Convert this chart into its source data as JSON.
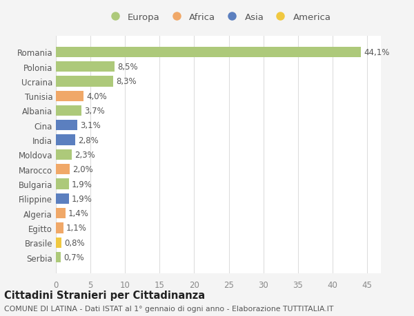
{
  "countries": [
    "Romania",
    "Polonia",
    "Ucraina",
    "Tunisia",
    "Albania",
    "Cina",
    "India",
    "Moldova",
    "Marocco",
    "Bulgaria",
    "Filippine",
    "Algeria",
    "Egitto",
    "Brasile",
    "Serbia"
  ],
  "values": [
    44.1,
    8.5,
    8.3,
    4.0,
    3.7,
    3.1,
    2.8,
    2.3,
    2.0,
    1.9,
    1.9,
    1.4,
    1.1,
    0.8,
    0.7
  ],
  "labels": [
    "44,1%",
    "8,5%",
    "8,3%",
    "4,0%",
    "3,7%",
    "3,1%",
    "2,8%",
    "2,3%",
    "2,0%",
    "1,9%",
    "1,9%",
    "1,4%",
    "1,1%",
    "0,8%",
    "0,7%"
  ],
  "continents": [
    "Europa",
    "Europa",
    "Europa",
    "Africa",
    "Europa",
    "Asia",
    "Asia",
    "Europa",
    "Africa",
    "Europa",
    "Asia",
    "Africa",
    "Africa",
    "America",
    "Europa"
  ],
  "continent_colors": {
    "Europa": "#adc97a",
    "Africa": "#f0a868",
    "Asia": "#5b7fbf",
    "America": "#f0c840"
  },
  "legend_order": [
    "Europa",
    "Africa",
    "Asia",
    "America"
  ],
  "bg_color": "#f4f4f4",
  "plot_bg_color": "#ffffff",
  "grid_color": "#dddddd",
  "title_bold": "Cittadini Stranieri per Cittadinanza",
  "subtitle": "COMUNE DI LATINA - Dati ISTAT al 1° gennaio di ogni anno - Elaborazione TUTTITALIA.IT",
  "xlim": [
    0,
    47
  ],
  "xticks": [
    0,
    5,
    10,
    15,
    20,
    25,
    30,
    35,
    40,
    45
  ],
  "bar_height": 0.72,
  "label_fontsize": 8.5,
  "ytick_fontsize": 8.5,
  "xtick_fontsize": 8.5,
  "legend_fontsize": 9.5,
  "title_fontsize": 10.5,
  "subtitle_fontsize": 7.8
}
